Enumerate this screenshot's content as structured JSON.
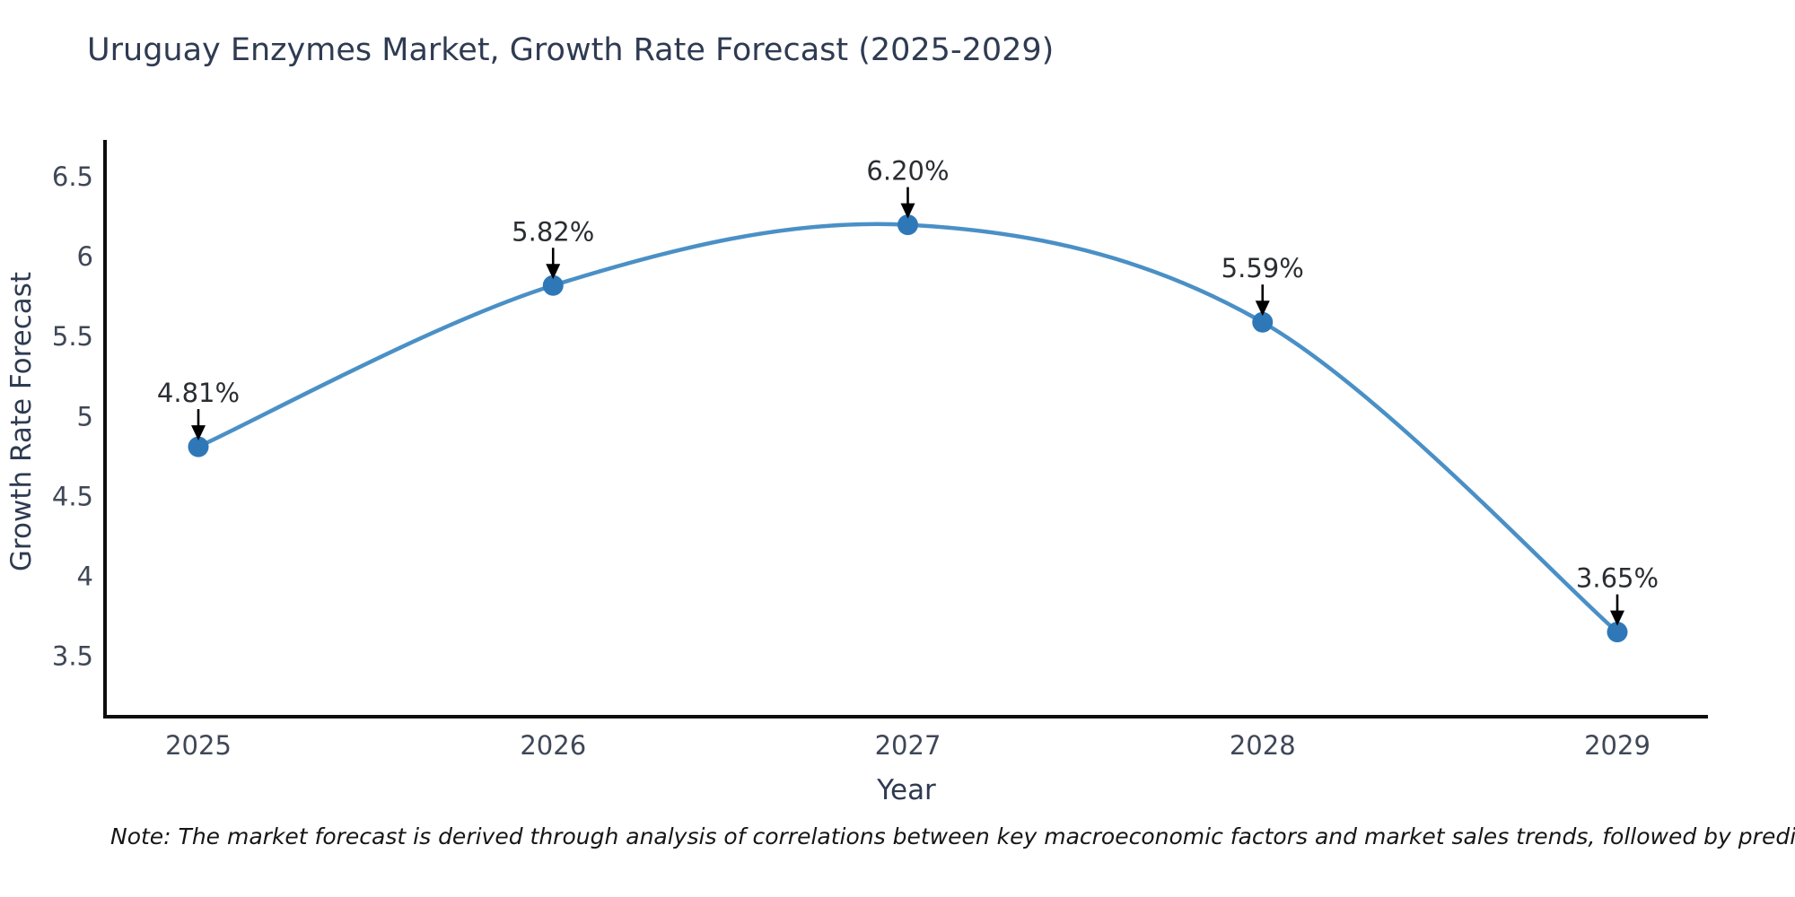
{
  "note": "Note: The market forecast is derived through analysis of correlations between key macroeconomic factors and market sales trends, followed by predictive modeling to project future sales",
  "colors": {
    "line": "#4a90c6",
    "marker": "#2f78b8",
    "axis_line": "#0d0d0d",
    "title_text": "#2f3b52",
    "tick_text": "#3f4757",
    "axis_title_text": "#2f3b52",
    "annotation_text": "#2a2e33",
    "arrow": "#000000",
    "background": "#ffffff"
  },
  "chart_data": {
    "type": "line",
    "title": "Uruguay Enzymes Market, Growth Rate Forecast (2025-2029)",
    "xlabel": "Year",
    "ylabel": "Growth Rate Forecast",
    "categories": [
      "2025",
      "2026",
      "2027",
      "2028",
      "2029"
    ],
    "values": [
      4.81,
      5.82,
      6.2,
      5.59,
      3.65
    ],
    "point_labels": [
      "4.81%",
      "5.82%",
      "6.20%",
      "5.59%",
      "3.65%"
    ],
    "series": [
      {
        "name": "Growth Rate Forecast",
        "values": [
          4.81,
          5.82,
          6.2,
          5.59,
          3.65
        ]
      }
    ],
    "yticks": [
      "6.5",
      "6",
      "5.5",
      "5",
      "4.5",
      "4",
      "3.5"
    ],
    "ytick_values": [
      6.5,
      6,
      5.5,
      5,
      4.5,
      4,
      3.5
    ],
    "ylim": [
      3.12,
      6.72
    ],
    "grid": false,
    "legend": false,
    "line_shape": "spline",
    "annotations": "value labels with downward arrows above each point"
  }
}
